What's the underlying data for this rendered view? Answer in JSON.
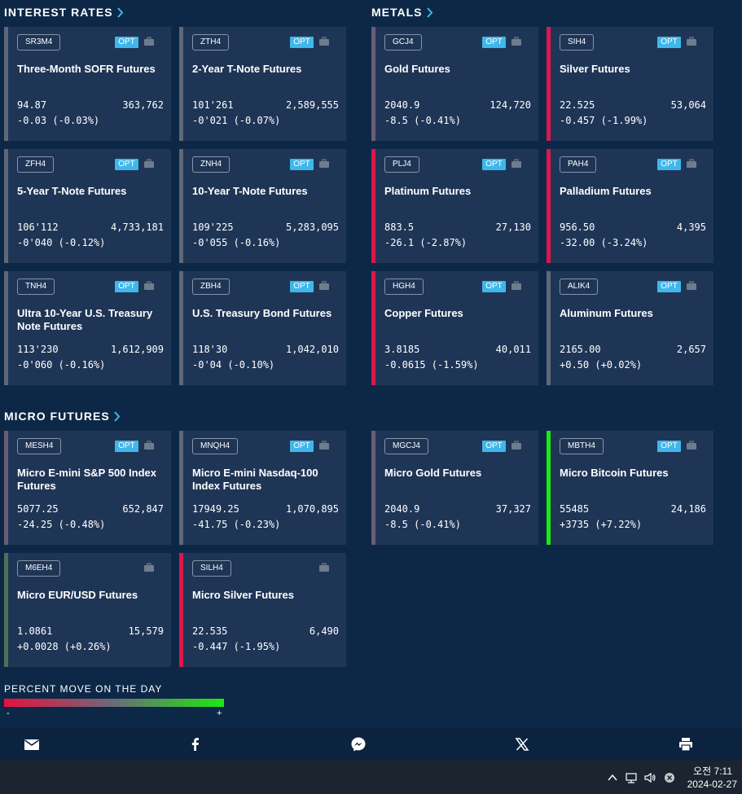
{
  "sections": {
    "interest_rates": "INTEREST RATES",
    "metals": "METALS",
    "micro_futures": "MICRO FUTURES"
  },
  "opt_label": "OPT",
  "cards": {
    "sr3m4": {
      "symbol": "SR3M4",
      "name": "Three-Month SOFR Futures",
      "price": "94.87",
      "volume": "363,762",
      "change": "-0.03 (-0.03%)",
      "percent_move": -0.03,
      "bar_color": "#5f6876"
    },
    "zth4": {
      "symbol": "ZTH4",
      "name": "2-Year T-Note Futures",
      "price": "101'261",
      "volume": "2,589,555",
      "change": "-0'021 (-0.07%)",
      "percent_move": -0.07,
      "bar_color": "#5f6876"
    },
    "gcj4": {
      "symbol": "GCJ4",
      "name": "Gold Futures",
      "price": "2040.9",
      "volume": "124,720",
      "change": "-8.5 (-0.41%)",
      "percent_move": -0.41,
      "bar_color": "#6c5c74"
    },
    "sih4": {
      "symbol": "SIH4",
      "name": "Silver Futures",
      "price": "22.525",
      "volume": "53,064",
      "change": "-0.457 (-1.99%)",
      "percent_move": -1.99,
      "bar_color": "#e0144a"
    },
    "zfh4": {
      "symbol": "ZFH4",
      "name": "5-Year T-Note Futures",
      "price": "106'112",
      "volume": "4,733,181",
      "change": "-0'040 (-0.12%)",
      "percent_move": -0.12,
      "bar_color": "#5f6876"
    },
    "znh4": {
      "symbol": "ZNH4",
      "name": "10-Year T-Note Futures",
      "price": "109'225",
      "volume": "5,283,095",
      "change": "-0'055 (-0.16%)",
      "percent_move": -0.16,
      "bar_color": "#5f6876"
    },
    "plj4": {
      "symbol": "PLJ4",
      "name": "Platinum Futures",
      "price": "883.5",
      "volume": "27,130",
      "change": "-26.1 (-2.87%)",
      "percent_move": -2.87,
      "bar_color": "#e0144a"
    },
    "pah4": {
      "symbol": "PAH4",
      "name": "Palladium Futures",
      "price": "956.50",
      "volume": "4,395",
      "change": "-32.00 (-3.24%)",
      "percent_move": -3.24,
      "bar_color": "#e0144a"
    },
    "tnh4": {
      "symbol": "TNH4",
      "name": "Ultra 10-Year U.S. Treasury Note Futures",
      "price": "113'230",
      "volume": "1,612,909",
      "change": "-0'060 (-0.16%)",
      "percent_move": -0.16,
      "bar_color": "#5f6876"
    },
    "zbh4": {
      "symbol": "ZBH4",
      "name": "U.S. Treasury Bond Futures",
      "price": "118'30",
      "volume": "1,042,010",
      "change": "-0'04 (-0.10%)",
      "percent_move": -0.1,
      "bar_color": "#5f6876"
    },
    "hgh4": {
      "symbol": "HGH4",
      "name": "Copper Futures",
      "price": "3.8185",
      "volume": "40,011",
      "change": "-0.0615 (-1.59%)",
      "percent_move": -1.59,
      "bar_color": "#e0144a"
    },
    "alik4": {
      "symbol": "ALIK4",
      "name": "Aluminum Futures",
      "price": "2165.00",
      "volume": "2,657",
      "change": "+0.50 (+0.02%)",
      "percent_move": 0.02,
      "bar_color": "#5f6876"
    },
    "mesh4": {
      "symbol": "MESH4",
      "name": "Micro E-mini S&P 500 Index Futures",
      "price": "5077.25",
      "volume": "652,847",
      "change": "-24.25 (-0.48%)",
      "percent_move": -0.48,
      "bar_color": "#6c5c74"
    },
    "mnqh4": {
      "symbol": "MNQH4",
      "name": "Micro E-mini Nasdaq-100 Index Futures",
      "price": "17949.25",
      "volume": "1,070,895",
      "change": "-41.75 (-0.23%)",
      "percent_move": -0.23,
      "bar_color": "#5f6876"
    },
    "mgcj4": {
      "symbol": "MGCJ4",
      "name": "Micro Gold Futures",
      "price": "2040.9",
      "volume": "37,327",
      "change": "-8.5 (-0.41%)",
      "percent_move": -0.41,
      "bar_color": "#6c5c74"
    },
    "mbth4": {
      "symbol": "MBTH4",
      "name": "Micro Bitcoin Futures",
      "price": "55485",
      "volume": "24,186",
      "change": "+3735 (+7.22%)",
      "percent_move": 7.22,
      "bar_color": "#1ee812"
    },
    "m6eh4": {
      "symbol": "M6EH4",
      "name": "Micro EUR/USD Futures",
      "price": "1.0861",
      "volume": "15,579",
      "change": "+0.0028 (+0.26%)",
      "percent_move": 0.26,
      "bar_color": "#4f6e58"
    },
    "silh4": {
      "symbol": "SILH4",
      "name": "Micro Silver Futures",
      "price": "22.535",
      "volume": "6,490",
      "change": "-0.447 (-1.95%)",
      "percent_move": -1.95,
      "bar_color": "#e0144a"
    }
  },
  "legend": {
    "title": "PERCENT MOVE ON THE DAY",
    "min_label": "-",
    "max_label": "+",
    "colors": {
      "negative": "#e8113f",
      "neutral": "#6b6b7a",
      "positive": "#1ee812"
    }
  },
  "share": {
    "icons": [
      "email-icon",
      "facebook-icon",
      "messenger-icon",
      "x-icon",
      "print-icon"
    ]
  },
  "taskbar": {
    "time": "오전 7:11",
    "date": "2024-02-27",
    "icons": [
      "chevron-up-icon",
      "network-icon",
      "volume-icon",
      "close-circle-icon"
    ]
  },
  "colors": {
    "background": "#0d2847",
    "card": "#1f3556",
    "opt_badge": "#3fb7ea",
    "accent": "#3fb7ea"
  }
}
